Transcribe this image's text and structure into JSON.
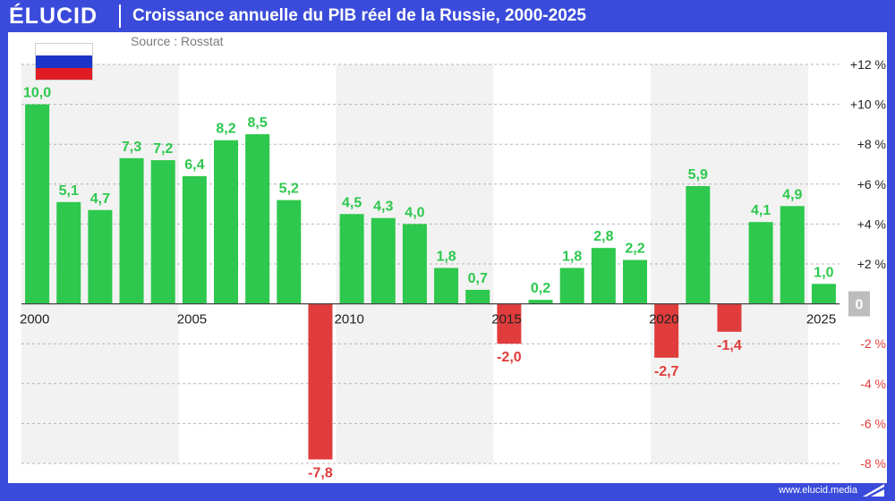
{
  "header": {
    "logo": "ÉLUCID",
    "title": "Croissance annuelle du PIB réel de la Russie, 2000-2025"
  },
  "source": "Source : Rosstat",
  "footer": {
    "url": "www.elucid.media"
  },
  "flag": {
    "icon": "russia-flag-icon",
    "colors": [
      "#ffffff",
      "#1b35c9",
      "#e01b24"
    ]
  },
  "colors": {
    "positive": "#2dc84d",
    "positive_label": "#2dc84d",
    "negative": "#e03c3c",
    "negative_label": "#e03c3c",
    "band": "#f2f2f2",
    "grid": "#b4b4b4",
    "axis_label": "#222222"
  },
  "chart_data": {
    "type": "bar",
    "title": "Croissance annuelle du PIB réel de la Russie, 2000-2025",
    "xlabel": "",
    "ylabel": "",
    "ylim": [
      -8,
      12
    ],
    "grid": true,
    "categories": [
      "2000",
      "2001",
      "2002",
      "2003",
      "2004",
      "2005",
      "2006",
      "2007",
      "2008",
      "2009",
      "2010",
      "2011",
      "2012",
      "2013",
      "2014",
      "2015",
      "2016",
      "2017",
      "2018",
      "2019",
      "2020",
      "2021",
      "2022",
      "2023",
      "2024",
      "2025"
    ],
    "values": [
      10.0,
      5.1,
      4.7,
      7.3,
      7.2,
      6.4,
      8.2,
      8.5,
      5.2,
      -7.8,
      4.5,
      4.3,
      4.0,
      1.8,
      0.7,
      -2.0,
      0.2,
      1.8,
      2.8,
      2.2,
      -2.7,
      5.9,
      -1.4,
      4.1,
      4.9,
      1.0
    ],
    "value_labels": [
      "10,0",
      "5,1",
      "4,7",
      "7,3",
      "7,2",
      "6,4",
      "8,2",
      "8,5",
      "5,2",
      "-7,8",
      "4,5",
      "4,3",
      "4,0",
      "1,8",
      "0,7",
      "-2,0",
      "0,2",
      "1,8",
      "2,8",
      "2,2",
      "-2,7",
      "5,9",
      "-1,4",
      "4,1",
      "4,9",
      "1,0"
    ],
    "x_tick_labels": [
      {
        "year": "2000",
        "label": "2000"
      },
      {
        "year": "2005",
        "label": "2005"
      },
      {
        "year": "2010",
        "label": "2010"
      },
      {
        "year": "2015",
        "label": "2015"
      },
      {
        "year": "2020",
        "label": "2020"
      },
      {
        "year": "2025",
        "label": "2025"
      }
    ],
    "y_tick_labels": [
      {
        "value": 12,
        "label": "+12 %"
      },
      {
        "value": 10,
        "label": "+10 %"
      },
      {
        "value": 8,
        "label": "+8 %"
      },
      {
        "value": 6,
        "label": "+6 %"
      },
      {
        "value": 4,
        "label": "+4 %"
      },
      {
        "value": 2,
        "label": "+2 %"
      },
      {
        "value": 0,
        "label": "0"
      },
      {
        "value": -2,
        "label": "-2 %"
      },
      {
        "value": -4,
        "label": "-4 %"
      },
      {
        "value": -6,
        "label": "-6 %"
      },
      {
        "value": -8,
        "label": "-8 %"
      }
    ],
    "shaded_bands": [
      [
        "2000",
        "2004"
      ],
      [
        "2010",
        "2014"
      ],
      [
        "2020",
        "2024"
      ]
    ]
  }
}
